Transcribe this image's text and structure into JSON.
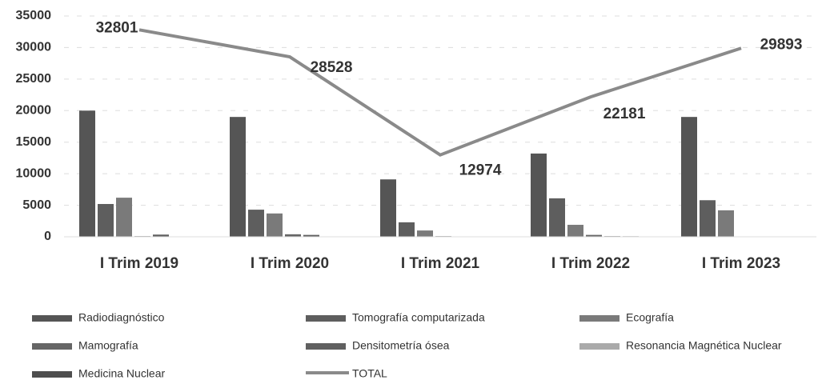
{
  "chart_data": {
    "type": "bar",
    "categories": [
      "I Trim 2019",
      "I Trim 2020",
      "I Trim 2021",
      "I Trim 2022",
      "I Trim 2023"
    ],
    "series": [
      {
        "name": "Radiodiagnóstico",
        "color": "#555555",
        "values": [
          20000,
          19000,
          9100,
          13200,
          19000
        ]
      },
      {
        "name": "Tomografía computarizada",
        "color": "#5e5e5e",
        "values": [
          5200,
          4300,
          2300,
          6100,
          5800
        ]
      },
      {
        "name": "Ecografía",
        "color": "#7a7a7a",
        "values": [
          6200,
          3700,
          1000,
          1900,
          4200
        ]
      },
      {
        "name": "Mamografía",
        "color": "#666666",
        "values": [
          100,
          400,
          100,
          300,
          0
        ]
      },
      {
        "name": "Densitometría ósea",
        "color": "#606060",
        "values": [
          350,
          300,
          50,
          100,
          0
        ]
      },
      {
        "name": "Resonancia Magnética Nuclear",
        "color": "#aaaaaa",
        "values": [
          0,
          0,
          0,
          100,
          0
        ]
      },
      {
        "name": "Medicina Nuclear",
        "color": "#4e4e4e",
        "values": [
          0,
          0,
          0,
          0,
          0
        ]
      },
      {
        "name": "TOTAL",
        "type": "line",
        "color": "#8a8a8a",
        "values": [
          32801,
          28528,
          12974,
          22181,
          29893
        ]
      }
    ],
    "ylim": [
      0,
      35000
    ],
    "yticks": [
      0,
      5000,
      10000,
      15000,
      20000,
      25000,
      30000,
      35000
    ],
    "grid": true
  }
}
